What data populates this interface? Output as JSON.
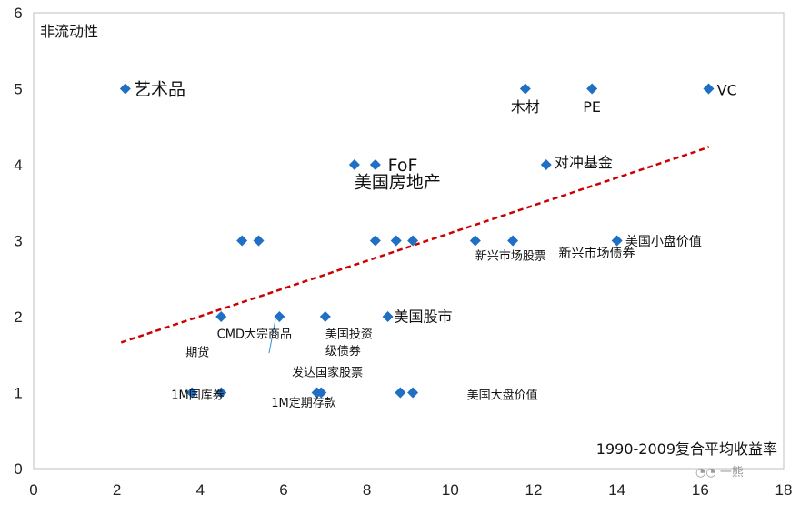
{
  "chart_data": {
    "type": "scatter",
    "title": "",
    "ylabel": "非流动性",
    "xlabel": "1990-2009复合平均收益率",
    "xlim": [
      0,
      18
    ],
    "ylim": [
      0,
      6
    ],
    "xticks": [
      0,
      2,
      4,
      6,
      8,
      10,
      12,
      14,
      16,
      18
    ],
    "yticks": [
      0,
      1,
      2,
      3,
      4,
      5,
      6
    ],
    "marker_color": "#1f6fc5",
    "trend_color": "#cc0000",
    "points": [
      {
        "x": 2.2,
        "y": 5
      },
      {
        "x": 11.8,
        "y": 5
      },
      {
        "x": 13.4,
        "y": 5
      },
      {
        "x": 16.2,
        "y": 5
      },
      {
        "x": 7.7,
        "y": 4
      },
      {
        "x": 8.2,
        "y": 4
      },
      {
        "x": 12.3,
        "y": 4
      },
      {
        "x": 5.0,
        "y": 3
      },
      {
        "x": 5.4,
        "y": 3
      },
      {
        "x": 8.2,
        "y": 3
      },
      {
        "x": 8.7,
        "y": 3
      },
      {
        "x": 9.1,
        "y": 3
      },
      {
        "x": 10.6,
        "y": 3
      },
      {
        "x": 11.5,
        "y": 3
      },
      {
        "x": 14.0,
        "y": 3
      },
      {
        "x": 4.5,
        "y": 2
      },
      {
        "x": 5.9,
        "y": 2
      },
      {
        "x": 7.0,
        "y": 2
      },
      {
        "x": 8.5,
        "y": 2
      },
      {
        "x": 3.8,
        "y": 1
      },
      {
        "x": 4.5,
        "y": 1
      },
      {
        "x": 6.8,
        "y": 1
      },
      {
        "x": 6.9,
        "y": 1
      },
      {
        "x": 8.8,
        "y": 1
      },
      {
        "x": 9.1,
        "y": 1
      }
    ],
    "trendline": {
      "x": [
        2.1,
        16.2
      ],
      "y": [
        1.66,
        4.23
      ]
    },
    "annotations": [
      {
        "text": "艺术品",
        "x": 2.4,
        "y": 5,
        "size": "large"
      },
      {
        "text": "木材",
        "x": 11.8,
        "y": 4.78,
        "size": "medium"
      },
      {
        "text": "PE",
        "x": 13.4,
        "y": 4.78,
        "size": "medium"
      },
      {
        "text": "VC",
        "x": 16.4,
        "y": 5,
        "size": "medium"
      },
      {
        "text": "FoF",
        "x": 8.5,
        "y": 4,
        "size": "large"
      },
      {
        "text": "美国房地产",
        "x": 7.7,
        "y": 3.78,
        "size": "large"
      },
      {
        "text": "对冲基金",
        "x": 12.5,
        "y": 4.05,
        "size": "medium"
      },
      {
        "text": "新兴市场股票",
        "x": 10.6,
        "y": 2.83,
        "size": "small"
      },
      {
        "text": "新兴市场债券",
        "x": 12.6,
        "y": 2.86,
        "size": "medium_small"
      },
      {
        "text": "美国小盘价值",
        "x": 14.2,
        "y": 3.02,
        "size": "medium_small"
      },
      {
        "text": "CMD大宗商品",
        "x": 4.4,
        "y": 1.8,
        "size": "small"
      },
      {
        "text": "期货",
        "x": 3.65,
        "y": 1.56,
        "size": "small"
      },
      {
        "text": "美国投资",
        "x": 7.0,
        "y": 1.8,
        "size": "small"
      },
      {
        "text": "级债券",
        "x": 7.0,
        "y": 1.58,
        "size": "small"
      },
      {
        "text": "美国股市",
        "x": 8.65,
        "y": 2.02,
        "size": "medium"
      },
      {
        "text": "发达国家股票",
        "x": 6.2,
        "y": 1.3,
        "size": "small"
      },
      {
        "text": "1M国库券",
        "x": 3.3,
        "y": 1,
        "size": "small"
      },
      {
        "text": "1M定期存款",
        "x": 5.7,
        "y": 0.9,
        "size": "small"
      },
      {
        "text": "美国大盘价值",
        "x": 10.4,
        "y": 1,
        "size": "small"
      }
    ]
  },
  "watermark": "一熊"
}
